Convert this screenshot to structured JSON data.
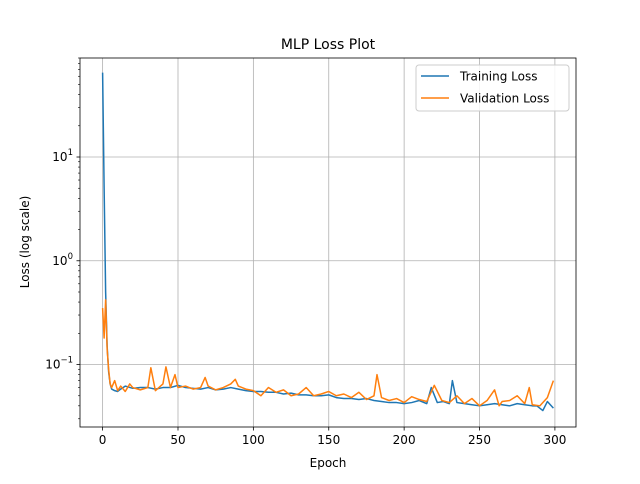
{
  "chart_data": {
    "type": "line",
    "title": "MLP Loss Plot",
    "xlabel": "Epoch",
    "ylabel": "Loss (log scale)",
    "xlim": [
      -15,
      314
    ],
    "ylim": [
      0.025,
      90
    ],
    "yscale": "log",
    "grid": true,
    "legend_position": "top-right",
    "xticks": [
      0,
      50,
      100,
      150,
      200,
      250,
      300
    ],
    "yticks": [
      {
        "value": 10,
        "base": "10",
        "exp": "1"
      },
      {
        "value": 1,
        "base": "10",
        "exp": "0"
      },
      {
        "value": 0.1,
        "base": "10",
        "exp": "−1"
      }
    ],
    "series": [
      {
        "name": "Training Loss",
        "color": "#1f77b4",
        "x": [
          0,
          1,
          2,
          3,
          4,
          5,
          6,
          8,
          10,
          12,
          15,
          20,
          25,
          30,
          35,
          40,
          45,
          50,
          55,
          60,
          65,
          70,
          75,
          80,
          85,
          90,
          95,
          100,
          105,
          110,
          115,
          120,
          125,
          130,
          135,
          140,
          145,
          150,
          155,
          160,
          165,
          170,
          175,
          180,
          185,
          190,
          195,
          200,
          205,
          210,
          215,
          218,
          222,
          226,
          230,
          232,
          235,
          240,
          245,
          250,
          255,
          260,
          265,
          270,
          275,
          280,
          285,
          288,
          292,
          295,
          299
        ],
        "y": [
          65,
          5,
          0.5,
          0.15,
          0.085,
          0.065,
          0.058,
          0.056,
          0.055,
          0.058,
          0.062,
          0.059,
          0.06,
          0.06,
          0.058,
          0.06,
          0.06,
          0.063,
          0.06,
          0.059,
          0.058,
          0.06,
          0.057,
          0.058,
          0.06,
          0.058,
          0.056,
          0.055,
          0.055,
          0.054,
          0.054,
          0.052,
          0.053,
          0.051,
          0.051,
          0.05,
          0.05,
          0.051,
          0.048,
          0.047,
          0.047,
          0.046,
          0.047,
          0.045,
          0.044,
          0.043,
          0.043,
          0.042,
          0.043,
          0.045,
          0.042,
          0.06,
          0.043,
          0.044,
          0.042,
          0.07,
          0.043,
          0.042,
          0.041,
          0.04,
          0.041,
          0.042,
          0.041,
          0.04,
          0.042,
          0.041,
          0.04,
          0.04,
          0.036,
          0.044,
          0.038
        ]
      },
      {
        "name": "Validation Loss",
        "color": "#ff7f0e",
        "x": [
          0,
          1,
          2,
          3,
          4,
          5,
          6,
          8,
          10,
          12,
          15,
          18,
          20,
          25,
          30,
          32,
          35,
          40,
          42,
          45,
          48,
          50,
          55,
          60,
          65,
          68,
          70,
          75,
          80,
          85,
          88,
          90,
          95,
          100,
          105,
          110,
          115,
          120,
          125,
          130,
          135,
          140,
          145,
          150,
          155,
          160,
          165,
          170,
          175,
          180,
          182,
          185,
          190,
          195,
          200,
          205,
          210,
          215,
          220,
          225,
          230,
          235,
          240,
          245,
          250,
          255,
          260,
          263,
          265,
          270,
          275,
          280,
          283,
          285,
          290,
          295,
          299
        ],
        "y": [
          0.35,
          0.18,
          0.42,
          0.14,
          0.09,
          0.065,
          0.06,
          0.07,
          0.056,
          0.062,
          0.055,
          0.065,
          0.06,
          0.057,
          0.06,
          0.093,
          0.056,
          0.065,
          0.095,
          0.06,
          0.08,
          0.06,
          0.062,
          0.058,
          0.06,
          0.075,
          0.062,
          0.057,
          0.06,
          0.065,
          0.072,
          0.062,
          0.058,
          0.056,
          0.05,
          0.06,
          0.054,
          0.057,
          0.05,
          0.052,
          0.06,
          0.05,
          0.052,
          0.055,
          0.05,
          0.052,
          0.048,
          0.054,
          0.046,
          0.05,
          0.08,
          0.048,
          0.045,
          0.047,
          0.043,
          0.049,
          0.046,
          0.044,
          0.063,
          0.045,
          0.043,
          0.05,
          0.042,
          0.047,
          0.04,
          0.045,
          0.057,
          0.04,
          0.044,
          0.045,
          0.05,
          0.042,
          0.06,
          0.041,
          0.04,
          0.048,
          0.07
        ]
      }
    ]
  }
}
